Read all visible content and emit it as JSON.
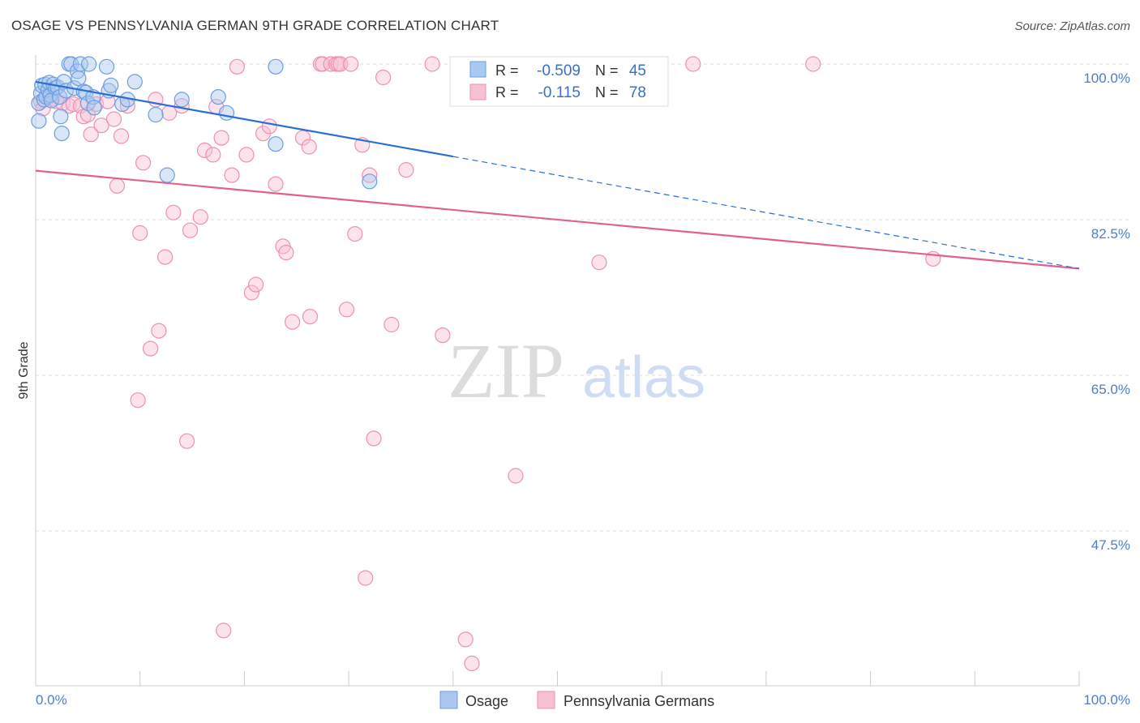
{
  "title": "OSAGE VS PENNSYLVANIA GERMAN 9TH GRADE CORRELATION CHART",
  "source": "Source: ZipAtlas.com",
  "watermark": {
    "zip": "ZIP",
    "atlas": "atlas"
  },
  "colors": {
    "osage_fill": "#aac8f0",
    "osage_stroke": "#6a9ee0",
    "osage_line": "#2a6fd0",
    "pg_fill": "#f8c0d4",
    "pg_stroke": "#ee90b0",
    "pg_line": "#e06090",
    "tick": "#4a7fd0",
    "grid": "#dddddd"
  },
  "legend": {
    "osage": {
      "r_label": "R =",
      "r_value": "-0.509",
      "n_label": "N =",
      "n_value": "45"
    },
    "pg": {
      "r_label": "R =",
      "r_value": "-0.115",
      "n_label": "N =",
      "n_value": "78"
    }
  },
  "bottom_legend": [
    "Osage",
    "Pennsylvania Germans"
  ],
  "chart_data": {
    "type": "scatter",
    "title": "OSAGE VS PENNSYLVANIA GERMAN 9TH GRADE CORRELATION CHART",
    "xlabel": "",
    "ylabel": "9th Grade",
    "xlim": [
      0,
      100
    ],
    "ylim": [
      32,
      101.5
    ],
    "x_tick_labels": [
      "0.0%",
      "100.0%"
    ],
    "y_ticks": [
      100.0,
      82.5,
      65.0,
      47.5
    ],
    "y_tick_labels": [
      "100.0%",
      "82.5%",
      "65.0%",
      "47.5%"
    ],
    "grid": true,
    "series": [
      {
        "name": "Osage",
        "r": -0.509,
        "n": 45,
        "trend": {
          "x0": 0,
          "y0": 98.0,
          "x_solid_end": 40,
          "x1": 100,
          "y1": 77.0
        },
        "points": [
          [
            0.3,
            93.6
          ],
          [
            0.3,
            95.6
          ],
          [
            0.5,
            96.7
          ],
          [
            0.6,
            97.6
          ],
          [
            0.8,
            96.0
          ],
          [
            0.9,
            97.7
          ],
          [
            1.0,
            96.3
          ],
          [
            1.2,
            97.1
          ],
          [
            1.3,
            97.9
          ],
          [
            1.4,
            96.5
          ],
          [
            1.5,
            95.9
          ],
          [
            1.7,
            97.7
          ],
          [
            1.9,
            97.3
          ],
          [
            2.1,
            97.4
          ],
          [
            2.3,
            96.3
          ],
          [
            2.4,
            94.1
          ],
          [
            2.5,
            92.2
          ],
          [
            2.7,
            98.0
          ],
          [
            2.9,
            97.0
          ],
          [
            3.2,
            100.0
          ],
          [
            3.4,
            100.0
          ],
          [
            3.7,
            97.3
          ],
          [
            4.0,
            99.2
          ],
          [
            4.1,
            98.4
          ],
          [
            4.3,
            100.0
          ],
          [
            4.6,
            96.9
          ],
          [
            4.8,
            96.8
          ],
          [
            5.0,
            95.6
          ],
          [
            5.1,
            100.0
          ],
          [
            5.5,
            96.3
          ],
          [
            5.6,
            95.1
          ],
          [
            6.8,
            99.7
          ],
          [
            7.0,
            97.0
          ],
          [
            7.2,
            97.6
          ],
          [
            8.3,
            95.5
          ],
          [
            8.8,
            96.0
          ],
          [
            9.5,
            98.0
          ],
          [
            11.5,
            94.3
          ],
          [
            12.6,
            87.5
          ],
          [
            14.0,
            96.0
          ],
          [
            17.5,
            96.3
          ],
          [
            18.3,
            94.5
          ],
          [
            23.0,
            91.0
          ],
          [
            23.0,
            99.7
          ],
          [
            32.0,
            86.8
          ]
        ]
      },
      {
        "name": "Pennsylvania Germans",
        "r": -0.115,
        "n": 78,
        "trend": {
          "x0": 0,
          "y0": 88.0,
          "x1": 100,
          "y1": 77.0
        },
        "points": [
          [
            0.5,
            95.8
          ],
          [
            0.7,
            95.0
          ],
          [
            1.3,
            96.3
          ],
          [
            1.6,
            96.1
          ],
          [
            2.0,
            95.8
          ],
          [
            2.6,
            95.6
          ],
          [
            3.2,
            95.3
          ],
          [
            3.6,
            95.5
          ],
          [
            4.3,
            95.3
          ],
          [
            4.6,
            94.1
          ],
          [
            5.0,
            94.3
          ],
          [
            5.3,
            92.1
          ],
          [
            5.8,
            95.5
          ],
          [
            6.3,
            93.1
          ],
          [
            6.9,
            95.8
          ],
          [
            7.5,
            93.8
          ],
          [
            7.8,
            86.3
          ],
          [
            8.2,
            91.9
          ],
          [
            8.8,
            95.3
          ],
          [
            9.8,
            62.2
          ],
          [
            10.0,
            81.0
          ],
          [
            10.3,
            88.9
          ],
          [
            11.0,
            68.0
          ],
          [
            11.5,
            96.0
          ],
          [
            11.8,
            70.0
          ],
          [
            12.4,
            78.3
          ],
          [
            12.8,
            94.5
          ],
          [
            13.2,
            83.3
          ],
          [
            14.0,
            95.3
          ],
          [
            14.5,
            57.6
          ],
          [
            14.8,
            81.3
          ],
          [
            15.8,
            82.8
          ],
          [
            16.2,
            90.3
          ],
          [
            17.0,
            89.8
          ],
          [
            17.3,
            95.2
          ],
          [
            17.8,
            91.7
          ],
          [
            18.0,
            36.3
          ],
          [
            18.8,
            87.5
          ],
          [
            19.3,
            99.7
          ],
          [
            20.2,
            89.8
          ],
          [
            20.7,
            74.3
          ],
          [
            21.1,
            75.2
          ],
          [
            21.8,
            92.2
          ],
          [
            22.4,
            93.0
          ],
          [
            23.0,
            86.5
          ],
          [
            23.7,
            79.5
          ],
          [
            24.0,
            78.8
          ],
          [
            24.6,
            71.0
          ],
          [
            25.6,
            91.7
          ],
          [
            26.2,
            90.7
          ],
          [
            26.3,
            71.6
          ],
          [
            27.3,
            100.0
          ],
          [
            27.5,
            100.0
          ],
          [
            28.3,
            100.0
          ],
          [
            28.8,
            100.0
          ],
          [
            29.0,
            100.0
          ],
          [
            29.2,
            100.0
          ],
          [
            29.8,
            72.4
          ],
          [
            30.2,
            100.0
          ],
          [
            30.6,
            80.9
          ],
          [
            31.3,
            90.9
          ],
          [
            31.6,
            42.2
          ],
          [
            32.0,
            87.5
          ],
          [
            32.4,
            57.9
          ],
          [
            33.3,
            98.5
          ],
          [
            34.1,
            70.7
          ],
          [
            35.5,
            88.1
          ],
          [
            38.0,
            100.0
          ],
          [
            39.0,
            69.5
          ],
          [
            41.2,
            35.3
          ],
          [
            41.8,
            32.6
          ],
          [
            46.0,
            53.7
          ],
          [
            47.3,
            100.0
          ],
          [
            54.0,
            77.7
          ],
          [
            55.0,
            100.0
          ],
          [
            63.0,
            100.0
          ],
          [
            74.5,
            100.0
          ],
          [
            86.0,
            78.1
          ]
        ]
      }
    ]
  }
}
